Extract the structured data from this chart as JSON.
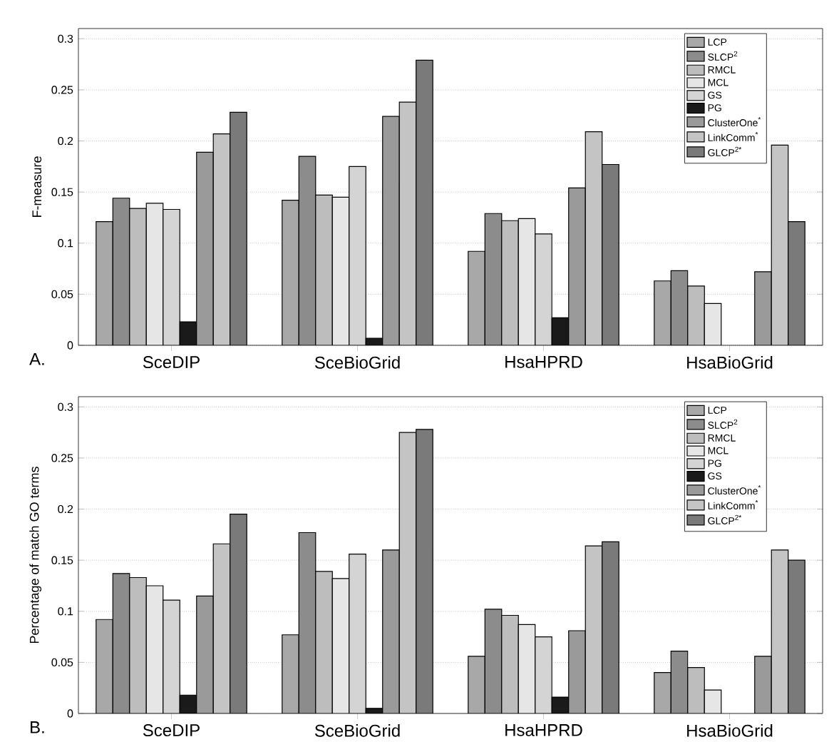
{
  "chart_data": [
    {
      "type": "bar",
      "ylabel": "F-measure",
      "annotations": [
        "A."
      ],
      "categories": [
        "SceDIP",
        "SceBioGrid",
        "HsaHPRD",
        "HsaBioGrid"
      ],
      "ylim": [
        0,
        0.31
      ],
      "yticks": [
        0,
        0.05,
        0.1,
        0.15,
        0.2,
        0.25,
        0.3
      ],
      "grid": "y",
      "legend": "top right",
      "series": [
        {
          "name": "LCP",
          "color": "#a8a8a8",
          "values": [
            0.121,
            0.142,
            0.092,
            0.063
          ]
        },
        {
          "name": "SLCP$^{2}$",
          "color": "#8c8c8c",
          "values": [
            0.144,
            0.185,
            0.129,
            0.073
          ]
        },
        {
          "name": "RMCL",
          "color": "#bdbdbd",
          "values": [
            0.134,
            0.147,
            0.122,
            0.058
          ]
        },
        {
          "name": "MCL",
          "color": "#e6e6e6",
          "values": [
            0.139,
            0.145,
            0.124,
            0.041
          ]
        },
        {
          "name": "GS",
          "color": "#d4d4d4",
          "values": [
            0.133,
            0.175,
            0.109,
            null
          ]
        },
        {
          "name": "PG",
          "color": "#1a1a1a",
          "values": [
            0.023,
            0.007,
            0.027,
            null
          ]
        },
        {
          "name": "ClusterOne$^{*}$",
          "color": "#9a9a9a",
          "values": [
            0.189,
            0.224,
            0.154,
            0.072
          ]
        },
        {
          "name": "LinkComm$^{*}$",
          "color": "#c4c4c4",
          "values": [
            0.207,
            0.238,
            0.209,
            0.196
          ]
        },
        {
          "name": "GLCP$^{2*}$",
          "color": "#7a7a7a",
          "values": [
            0.228,
            0.279,
            0.177,
            0.121
          ]
        }
      ]
    },
    {
      "type": "bar",
      "ylabel": "Percentage of match GO terms",
      "annotations": [
        "B."
      ],
      "categories": [
        "SceDIP",
        "SceBioGrid",
        "HsaHPRD",
        "HsaBioGrid"
      ],
      "ylim": [
        0,
        0.31
      ],
      "yticks": [
        0,
        0.05,
        0.1,
        0.15,
        0.2,
        0.25,
        0.3
      ],
      "grid": "y",
      "legend": "top right",
      "series": [
        {
          "name": "LCP",
          "color": "#a8a8a8",
          "values": [
            0.092,
            0.077,
            0.056,
            0.04
          ]
        },
        {
          "name": "SLCP$^{2}$",
          "color": "#8c8c8c",
          "values": [
            0.137,
            0.177,
            0.102,
            0.061
          ]
        },
        {
          "name": "RMCL",
          "color": "#bdbdbd",
          "values": [
            0.133,
            0.139,
            0.096,
            0.045
          ]
        },
        {
          "name": "MCL",
          "color": "#e6e6e6",
          "values": [
            0.125,
            0.132,
            0.087,
            0.023
          ]
        },
        {
          "name": "PG",
          "color": "#d4d4d4",
          "values": [
            0.111,
            0.156,
            0.075,
            null
          ]
        },
        {
          "name": "GS",
          "color": "#1a1a1a",
          "values": [
            0.018,
            0.005,
            0.016,
            null
          ]
        },
        {
          "name": "ClusterOne$^{*}$",
          "color": "#9a9a9a",
          "values": [
            0.115,
            0.16,
            0.081,
            0.056
          ]
        },
        {
          "name": "LinkComm$^{*}$",
          "color": "#c4c4c4",
          "values": [
            0.166,
            0.275,
            0.164,
            0.16
          ]
        },
        {
          "name": "GLCP$^{2*}$",
          "color": "#7a7a7a",
          "values": [
            0.195,
            0.278,
            0.168,
            0.15
          ]
        }
      ]
    }
  ]
}
